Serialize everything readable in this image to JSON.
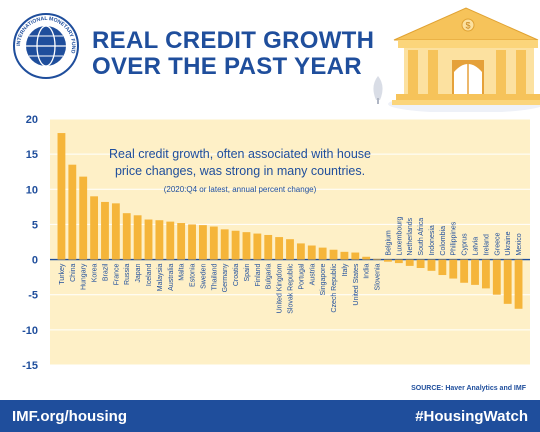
{
  "header": {
    "logo_text": "INTERNATIONAL MONETARY FUND",
    "title_line1": "REAL CREDIT GROWTH",
    "title_line2": "OVER THE PAST YEAR"
  },
  "colors": {
    "brand_blue": "#1f4e9c",
    "bar": "#f5b53a",
    "plot_bg": "#fef0c7"
  },
  "chart_data": {
    "type": "bar",
    "subtitle_line1": "Real credit growth, often associated with house",
    "subtitle_line2": "price changes, was strong in many countries.",
    "note": "(2020:Q4 or latest, annual percent change)",
    "ylim": [
      -15,
      20
    ],
    "yticks": [
      -15,
      -10,
      -5,
      0,
      5,
      10,
      15,
      20
    ],
    "categories": [
      "Turkey",
      "China",
      "Hungary",
      "Korea",
      "Brazil",
      "France",
      "Russia",
      "Japan",
      "Iceland",
      "Malaysia",
      "Australia",
      "Malta",
      "Estonia",
      "Sweden",
      "Thailand",
      "Germany",
      "Croatia",
      "Spain",
      "Finland",
      "Bulgaria",
      "United Kingdom",
      "Slovak Republic",
      "Portugal",
      "Austria",
      "Singapore",
      "Czech Republic",
      "Italy",
      "United States",
      "India",
      "Slovenia",
      "Belgium",
      "Luxembourg",
      "Netherlands",
      "South Africa",
      "Indonesia",
      "Colombia",
      "Philippines",
      "Cyprus",
      "Latvia",
      "Ireland",
      "Greece",
      "Ukraine",
      "Mexico"
    ],
    "values": [
      18.0,
      13.5,
      11.8,
      9.0,
      8.2,
      8.0,
      6.6,
      6.3,
      5.7,
      5.6,
      5.4,
      5.2,
      5.0,
      4.9,
      4.7,
      4.3,
      4.1,
      3.9,
      3.7,
      3.5,
      3.2,
      2.9,
      2.3,
      2.0,
      1.7,
      1.4,
      1.1,
      1.0,
      0.4,
      0.1,
      -0.3,
      -0.5,
      -0.9,
      -1.2,
      -1.6,
      -2.2,
      -2.7,
      -3.3,
      -3.6,
      -4.1,
      -5.0,
      -6.3,
      -7.0
    ]
  },
  "source": "SOURCE: Haver Analytics and IMF",
  "footer": {
    "left": "IMF.org/housing",
    "right": "#HousingWatch"
  }
}
